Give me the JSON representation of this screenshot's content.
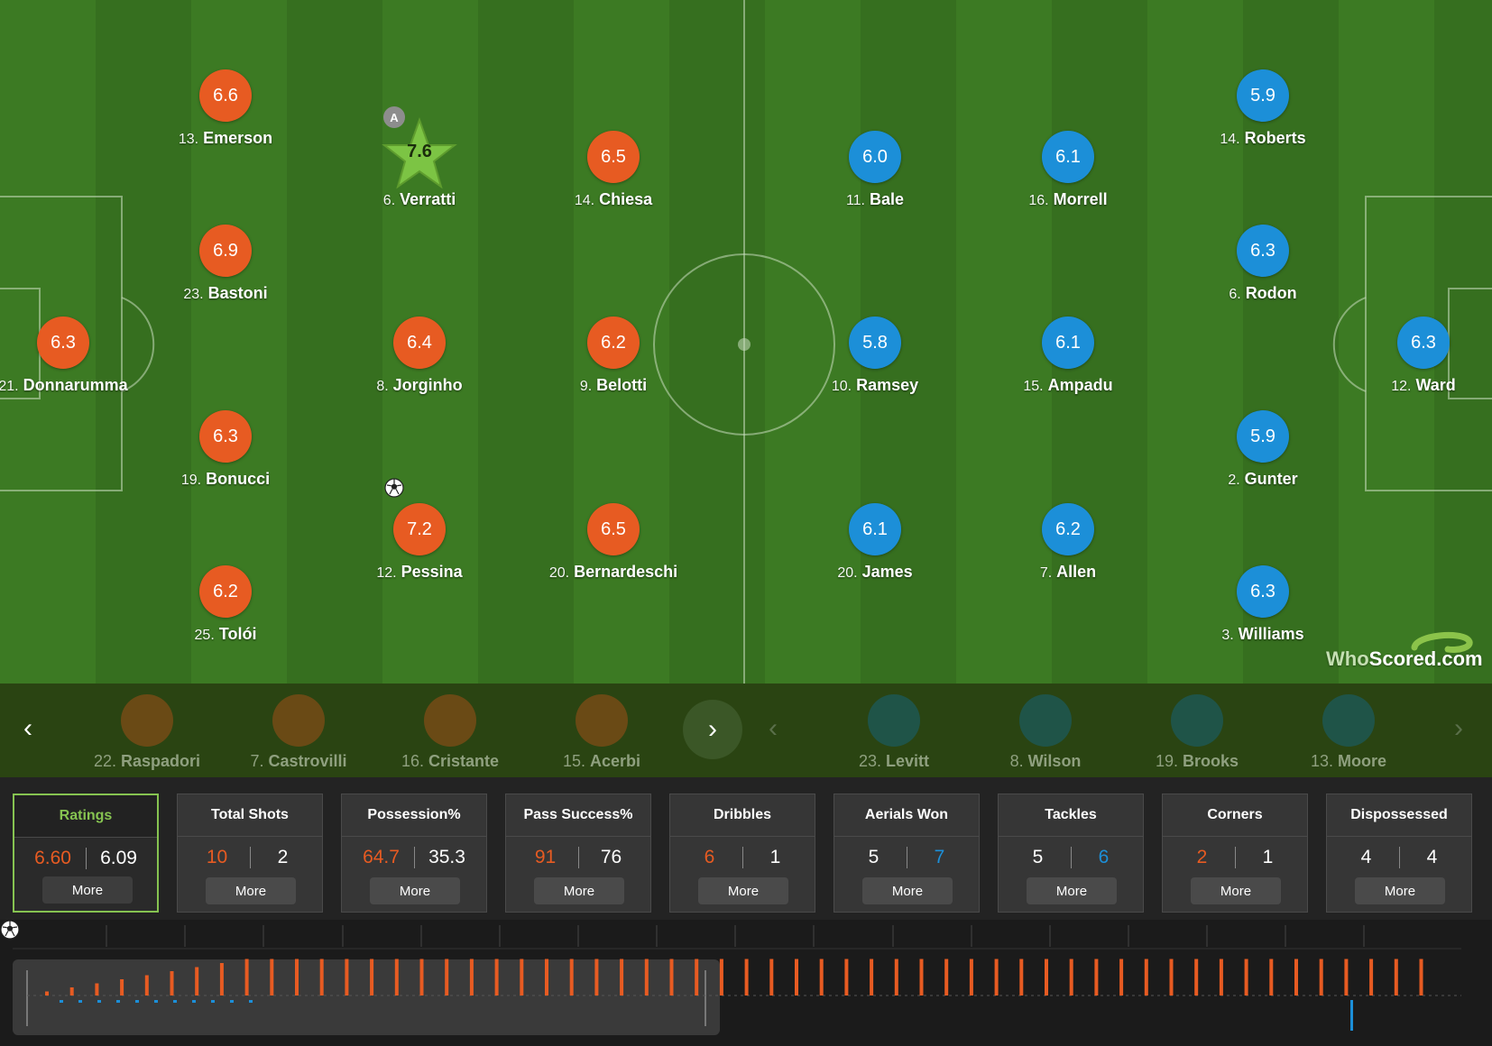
{
  "home_team_color": "#e75b22",
  "away_team_color": "#1c8fd8",
  "home_players": [
    {
      "num": "21.",
      "name": "Donnarumma",
      "rating": "6.3"
    },
    {
      "num": "13.",
      "name": "Emerson",
      "rating": "6.6"
    },
    {
      "num": "23.",
      "name": "Bastoni",
      "rating": "6.9"
    },
    {
      "num": "19.",
      "name": "Bonucci",
      "rating": "6.3"
    },
    {
      "num": "25.",
      "name": "Tolói",
      "rating": "6.2"
    },
    {
      "num": "6.",
      "name": "Verratti",
      "rating": "7.6",
      "man_of_match": true,
      "captain": "A"
    },
    {
      "num": "8.",
      "name": "Jorginho",
      "rating": "6.4"
    },
    {
      "num": "12.",
      "name": "Pessina",
      "rating": "7.2",
      "scored": true
    },
    {
      "num": "14.",
      "name": "Chiesa",
      "rating": "6.5"
    },
    {
      "num": "9.",
      "name": "Belotti",
      "rating": "6.2"
    },
    {
      "num": "20.",
      "name": "Bernardeschi",
      "rating": "6.5"
    }
  ],
  "away_players": [
    {
      "num": "11.",
      "name": "Bale",
      "rating": "6.0"
    },
    {
      "num": "10.",
      "name": "Ramsey",
      "rating": "5.8"
    },
    {
      "num": "20.",
      "name": "James",
      "rating": "6.1"
    },
    {
      "num": "16.",
      "name": "Morrell",
      "rating": "6.1"
    },
    {
      "num": "15.",
      "name": "Ampadu",
      "rating": "6.1"
    },
    {
      "num": "7.",
      "name": "Allen",
      "rating": "6.2"
    },
    {
      "num": "14.",
      "name": "Roberts",
      "rating": "5.9"
    },
    {
      "num": "6.",
      "name": "Rodon",
      "rating": "6.3"
    },
    {
      "num": "2.",
      "name": "Gunter",
      "rating": "5.9"
    },
    {
      "num": "3.",
      "name": "Williams",
      "rating": "6.3"
    },
    {
      "num": "12.",
      "name": "Ward",
      "rating": "6.3"
    }
  ],
  "watermark": {
    "who": "Who",
    "scored": "Scored",
    "dot": ".",
    "com": "com"
  },
  "home_subs": [
    {
      "num": "22.",
      "name": "Raspadori"
    },
    {
      "num": "7.",
      "name": "Castrovilli"
    },
    {
      "num": "16.",
      "name": "Cristante"
    },
    {
      "num": "15.",
      "name": "Acerbi"
    }
  ],
  "away_subs": [
    {
      "num": "23.",
      "name": "Levitt"
    },
    {
      "num": "8.",
      "name": "Wilson"
    },
    {
      "num": "19.",
      "name": "Brooks"
    },
    {
      "num": "13.",
      "name": "Moore"
    }
  ],
  "subs_nav": {
    "prev": "‹",
    "next": "›"
  },
  "stats": [
    {
      "title": "Ratings",
      "home": "6.60",
      "away": "6.09",
      "highlight": "home",
      "more": "More",
      "active": true
    },
    {
      "title": "Total Shots",
      "home": "10",
      "away": "2",
      "highlight": "home",
      "more": "More"
    },
    {
      "title": "Possession%",
      "home": "64.7",
      "away": "35.3",
      "highlight": "home",
      "more": "More"
    },
    {
      "title": "Pass Success%",
      "home": "91",
      "away": "76",
      "highlight": "home",
      "more": "More"
    },
    {
      "title": "Dribbles",
      "home": "6",
      "away": "1",
      "highlight": "home",
      "more": "More"
    },
    {
      "title": "Aerials Won",
      "home": "5",
      "away": "7",
      "highlight": "away",
      "more": "More"
    },
    {
      "title": "Tackles",
      "home": "5",
      "away": "6",
      "highlight": "away",
      "more": "More"
    },
    {
      "title": "Corners",
      "home": "2",
      "away": "1",
      "highlight": "home",
      "more": "More"
    },
    {
      "title": "Dispossessed",
      "home": "4",
      "away": "4",
      "highlight": "none",
      "more": "More"
    }
  ],
  "timeline": {
    "goal_icon": "soccer-ball-icon",
    "home_bar_levels": [
      1,
      2,
      3,
      4,
      5,
      6,
      7,
      8,
      9,
      9,
      9,
      9,
      9,
      9,
      9,
      9,
      9,
      9,
      9,
      9,
      9,
      9,
      9,
      9,
      9,
      9,
      9,
      9,
      9,
      9,
      9,
      9,
      9,
      9,
      9,
      9,
      9,
      9,
      9,
      9,
      9,
      9,
      9,
      9,
      9,
      9,
      9,
      9,
      9,
      9,
      9,
      9,
      9,
      9,
      9,
      9
    ],
    "away_bar_levels": [
      1,
      1,
      1,
      1,
      1,
      1,
      1,
      1,
      1,
      1,
      1
    ]
  }
}
